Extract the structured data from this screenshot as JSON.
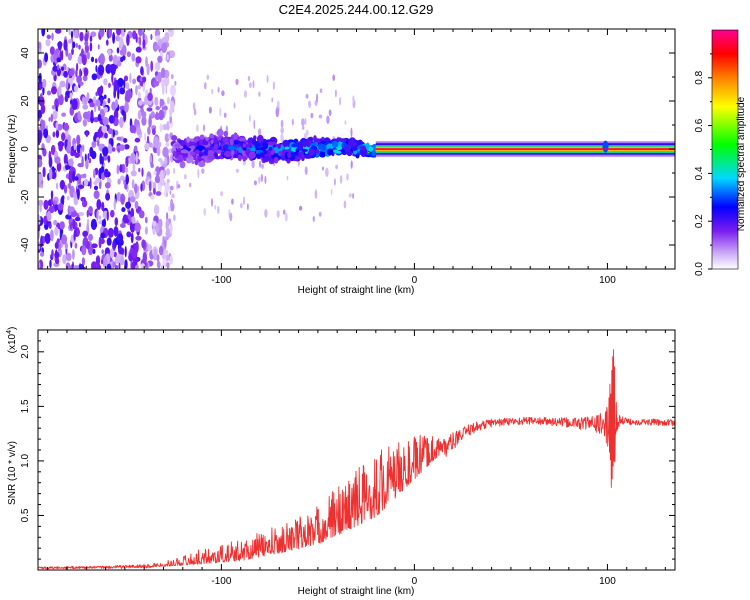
{
  "title": "C2E4.2025.244.00.12.G29",
  "chart_data": [
    {
      "type": "heatmap",
      "xlabel": "Height of straight line (km)",
      "ylabel": "Frequency (Hz)",
      "xlim": [
        -195,
        135
      ],
      "ylim": [
        -50,
        50
      ],
      "x_ticks": [
        -100,
        0,
        100
      ],
      "x_tick_labels": [
        "-100",
        "0",
        "100"
      ],
      "y_ticks": [
        -40,
        -20,
        0,
        20,
        40
      ],
      "y_tick_labels": [
        "-40",
        "-20",
        "0",
        "20",
        "40"
      ],
      "colorbar": {
        "label": "Normalized spectral amplitude",
        "range": [
          0,
          1
        ],
        "ticks": [
          0.0,
          0.2,
          0.4,
          0.6,
          0.8
        ],
        "tick_labels": [
          "0.0",
          "0.2",
          "0.4",
          "0.6",
          "0.8"
        ],
        "colormap": [
          "#ffffff",
          "#7a1cf0",
          "#0000ff",
          "#00e5ff",
          "#00ff00",
          "#ffff00",
          "#ff8000",
          "#ff0000",
          "#ff0090"
        ]
      },
      "features": [
        {
          "name": "noise_region",
          "x_range": [
            -195,
            -125
          ],
          "freq_range": [
            -50,
            50
          ],
          "amplitude": 0.1
        },
        {
          "name": "emerging_signal",
          "x_range": [
            -125,
            -20
          ],
          "freq_center": 0,
          "freq_halfwidth_start": 8,
          "freq_halfwidth_end": 3,
          "amplitude_start": 0.2,
          "amplitude_end": 0.45
        },
        {
          "name": "stable_carrier",
          "x_range": [
            -20,
            135
          ],
          "freq_center": 0,
          "amplitude": 0.95
        }
      ]
    },
    {
      "type": "line",
      "xlabel": "Height of straight line (km)",
      "ylabel": "SNR (10 * v/v)",
      "y_scale_label": "(x10",
      "y_scale_exp": "4",
      "y_scale_suffix": ")",
      "xlim": [
        -195,
        135
      ],
      "ylim": [
        0,
        22000
      ],
      "x_ticks": [
        -100,
        0,
        100
      ],
      "x_tick_labels": [
        "-100",
        "0",
        "100"
      ],
      "y_ticks": [
        5000,
        10000,
        15000,
        20000
      ],
      "y_tick_labels": [
        "0.5",
        "1.0",
        "1.5",
        "2.0"
      ],
      "series": [
        {
          "name": "SNR",
          "color": "#ee3030",
          "x": [
            -195,
            -160,
            -130,
            -110,
            -90,
            -70,
            -50,
            -35,
            -20,
            -10,
            0,
            10,
            20,
            30,
            40,
            60,
            80,
            95,
            100,
            103,
            105,
            110,
            135
          ],
          "y_mean": [
            200,
            250,
            400,
            800,
            1200,
            2000,
            3000,
            4500,
            6000,
            7500,
            9000,
            10500,
            11800,
            13000,
            13500,
            13700,
            13500,
            13400,
            13200,
            13300,
            13700,
            13600,
            13500
          ],
          "noise": [
            100,
            120,
            200,
            700,
            1000,
            1300,
            1800,
            2600,
            3200,
            2600,
            2000,
            1200,
            800,
            500,
            400,
            350,
            450,
            800,
            1800,
            7000,
            800,
            300,
            300
          ]
        }
      ]
    }
  ]
}
